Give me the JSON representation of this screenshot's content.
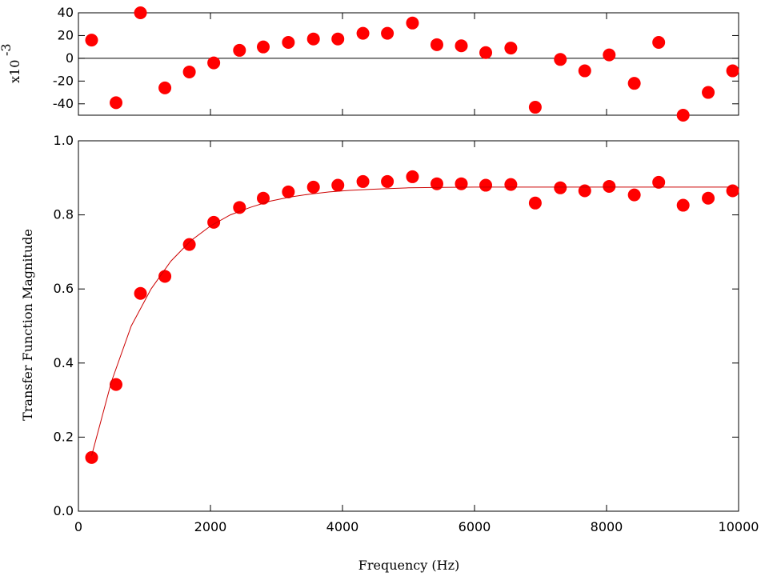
{
  "chart_data": [
    {
      "type": "scatter",
      "panel": "residuals",
      "title": "",
      "xlabel": "",
      "ylabel": "",
      "y_multiplier_label": "x10",
      "y_multiplier_exponent": "-3",
      "xlim": [
        0,
        10000
      ],
      "ylim": [
        -50,
        40
      ],
      "y_ticks": [
        -40,
        -20,
        0,
        20,
        40
      ],
      "x_ticks": [
        0,
        2000,
        4000,
        6000,
        8000,
        10000
      ],
      "zero_line": true,
      "grid": false,
      "series": [
        {
          "x": [
            200,
            570,
            940,
            1310,
            1680,
            2050,
            2440,
            2800,
            3180,
            3560,
            3930,
            4310,
            4680,
            5060,
            5430,
            5800,
            6170,
            6550,
            6920,
            7300,
            7670,
            8040,
            8420,
            8790,
            9160,
            9540,
            9910
          ],
          "y": [
            16,
            -39,
            40,
            -26,
            -12,
            -4,
            7,
            10,
            14,
            17,
            17,
            22,
            22,
            31,
            12,
            11,
            5,
            9,
            -43,
            -1,
            -11,
            3,
            -22,
            14,
            -50,
            -30,
            -11
          ]
        }
      ],
      "colors": {
        "marker": "#ff0000"
      }
    },
    {
      "type": "scatter",
      "panel": "main",
      "title": "",
      "xlabel": "Frequency (Hz)",
      "ylabel": "Transfer Function Magnitude",
      "xlim": [
        0,
        10000
      ],
      "ylim": [
        0.0,
        1.0
      ],
      "x_ticks": [
        0,
        2000,
        4000,
        6000,
        8000,
        10000
      ],
      "y_ticks": [
        0.0,
        0.2,
        0.4,
        0.6,
        0.8,
        1.0
      ],
      "grid": false,
      "series": [
        {
          "x": [
            200,
            570,
            940,
            1310,
            1680,
            2050,
            2440,
            2800,
            3180,
            3560,
            3930,
            4310,
            4680,
            5060,
            5430,
            5800,
            6170,
            6550,
            6920,
            7300,
            7670,
            8040,
            8420,
            8790,
            9160,
            9540,
            9910
          ],
          "y": [
            0.145,
            0.342,
            0.588,
            0.634,
            0.72,
            0.78,
            0.82,
            0.845,
            0.862,
            0.875,
            0.88,
            0.89,
            0.89,
            0.903,
            0.884,
            0.884,
            0.88,
            0.882,
            0.832,
            0.873,
            0.865,
            0.877,
            0.854,
            0.888,
            0.826,
            0.845,
            0.865
          ]
        },
        {
          "type": "line",
          "x": [
            200,
            500,
            800,
            1100,
            1400,
            1700,
            2000,
            2300,
            2600,
            2900,
            3200,
            3500,
            3800,
            4100,
            4400,
            4700,
            5000,
            5500,
            6000,
            6500,
            7000,
            7500,
            8000,
            8500,
            9000,
            9500,
            9910
          ],
          "y": [
            0.15,
            0.35,
            0.5,
            0.6,
            0.675,
            0.73,
            0.77,
            0.8,
            0.82,
            0.837,
            0.848,
            0.856,
            0.862,
            0.866,
            0.869,
            0.871,
            0.873,
            0.874,
            0.875,
            0.875,
            0.875,
            0.875,
            0.875,
            0.875,
            0.875,
            0.875,
            0.875
          ]
        }
      ],
      "colors": {
        "marker": "#ff0000",
        "line": "#cc0000"
      }
    }
  ]
}
